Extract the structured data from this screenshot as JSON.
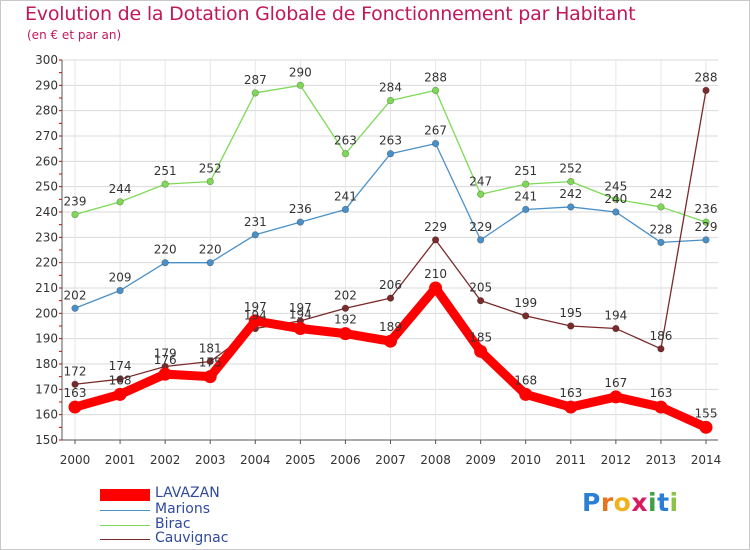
{
  "title": "Evolution de la Dotation Globale de Fonctionnement par Habitant",
  "subtitle": "(en € et par an)",
  "logo": {
    "letters": [
      "P",
      "r",
      "o",
      "x",
      "i",
      "t",
      "i"
    ],
    "colors": [
      "#2a7fd4",
      "#e8731a",
      "#f2b21b",
      "#d81b60",
      "#43a047",
      "#2a7fd4",
      "#8bc34a"
    ]
  },
  "chart_data": {
    "type": "line",
    "x": [
      "2000",
      "2001",
      "2002",
      "2003",
      "2004",
      "2005",
      "2006",
      "2007",
      "2008",
      "2009",
      "2010",
      "2011",
      "2012",
      "2013",
      "2014"
    ],
    "ylim": [
      150,
      300
    ],
    "yticks": [
      "150",
      "160",
      "170",
      "180",
      "190",
      "200",
      "210",
      "220",
      "230",
      "240",
      "250",
      "260",
      "270",
      "280",
      "290",
      "300"
    ],
    "grid": true,
    "legend_position": "bottom-left",
    "series": [
      {
        "name": "LAVAZAN",
        "color": "#ff0000",
        "values": [
          163,
          168,
          176,
          175,
          197,
          194,
          192,
          189,
          210,
          185,
          168,
          163,
          167,
          163,
          155
        ],
        "labels": [
          "163",
          "168",
          "176",
          "175",
          "197",
          "194",
          "192",
          "189",
          "210",
          "185",
          "168",
          "163",
          "167",
          "163",
          "155"
        ]
      },
      {
        "name": "Marions",
        "color": "#4a90c8",
        "values": [
          202,
          209,
          220,
          220,
          231,
          236,
          241,
          263,
          267,
          229,
          241,
          242,
          240,
          228,
          229
        ],
        "labels": [
          "202",
          "209",
          "220",
          "220",
          "231",
          "236",
          "241",
          "263",
          "267",
          "229",
          "241",
          "242",
          "240",
          "228",
          "229"
        ]
      },
      {
        "name": "Birac",
        "color": "#7ed957",
        "values": [
          239,
          244,
          251,
          252,
          287,
          290,
          263,
          284,
          288,
          247,
          251,
          252,
          245,
          242,
          236
        ],
        "labels": [
          "239",
          "244",
          "251",
          "252",
          "287",
          "290",
          "263",
          "284",
          "288",
          "247",
          "251",
          "252",
          "245",
          "242",
          "236"
        ]
      },
      {
        "name": "Cauvignac",
        "color": "#7a2a2a",
        "values": [
          172,
          174,
          179,
          181,
          194,
          197,
          202,
          206,
          229,
          205,
          199,
          195,
          194,
          186,
          288
        ],
        "labels": [
          "172",
          "174",
          "179",
          "181",
          "194",
          "197",
          "202",
          "206",
          "229",
          "205",
          "199",
          "195",
          "194",
          "186",
          "288"
        ]
      }
    ]
  }
}
